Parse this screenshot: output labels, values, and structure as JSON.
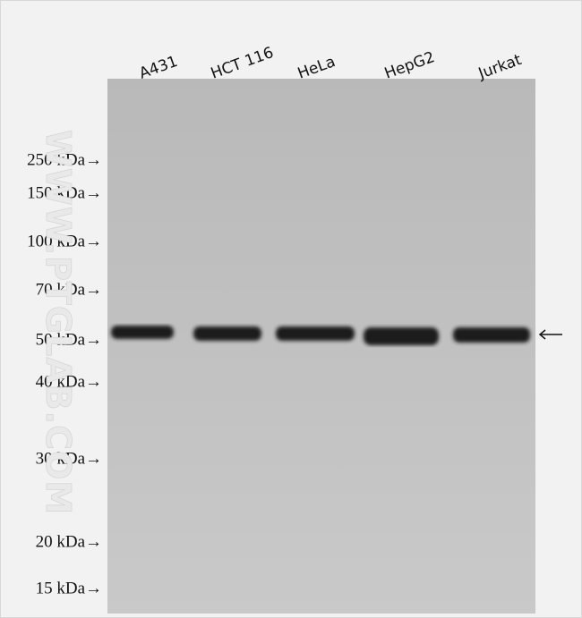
{
  "lanes": [
    "A431",
    "HCT 116",
    "HeLa",
    "HepG2",
    "Jurkat"
  ],
  "markers": [
    "250 kDa→",
    "150 kDa→",
    "100 kDa→",
    "70 kDa→",
    "50 kDa→",
    "40 kDa→",
    "30 kDa→",
    "20 kDa→",
    "15 kDa→"
  ],
  "watermark": "WWW.PTGLAB.COM"
}
